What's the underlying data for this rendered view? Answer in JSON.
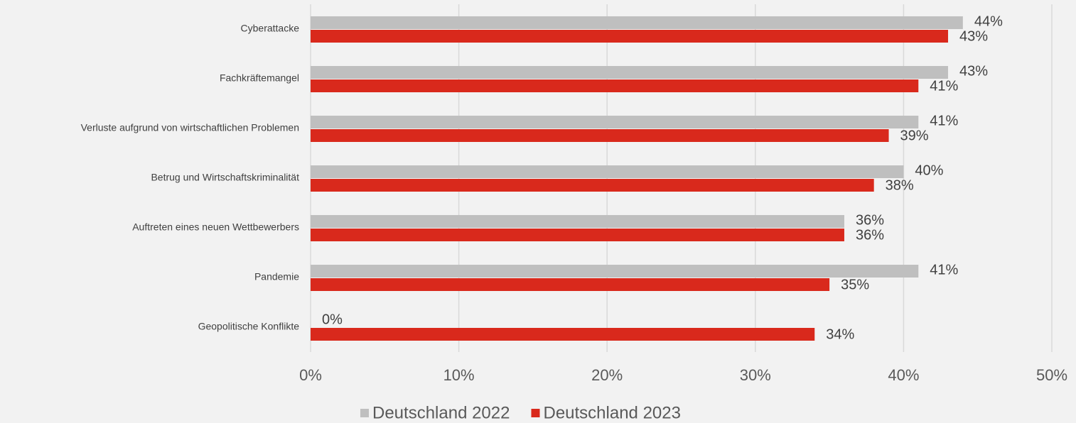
{
  "chart_data": {
    "type": "bar",
    "orientation": "horizontal",
    "categories": [
      "Cyberattacke",
      "Fachkräftemangel",
      "Verluste aufgrund von wirtschaftlichen Problemen",
      "Betrug und Wirtschaftskriminalität",
      "Auftreten eines neuen Wettbewerbers",
      "Pandemie",
      "Geopolitische Konflikte"
    ],
    "series": [
      {
        "name": "Deutschland 2022",
        "color": "#bfbfbf",
        "values": [
          44,
          43,
          41,
          40,
          36,
          41,
          0
        ],
        "value_labels": [
          "44%",
          "43%",
          "41%",
          "40%",
          "36%",
          "41%",
          "0%"
        ]
      },
      {
        "name": "Deutschland 2023",
        "color": "#d9291c",
        "values": [
          43,
          41,
          39,
          38,
          36,
          35,
          34
        ],
        "value_labels": [
          "43%",
          "41%",
          "39%",
          "38%",
          "36%",
          "35%",
          "34%"
        ]
      }
    ],
    "xlim": [
      0,
      50
    ],
    "xticks": [
      {
        "value": 0,
        "label": "0%"
      },
      {
        "value": 10,
        "label": "10%"
      },
      {
        "value": 20,
        "label": "20%"
      },
      {
        "value": 30,
        "label": "30%"
      },
      {
        "value": 40,
        "label": "40%"
      },
      {
        "value": 50,
        "label": "50%"
      }
    ],
    "grid": true,
    "legend": "bottom"
  }
}
